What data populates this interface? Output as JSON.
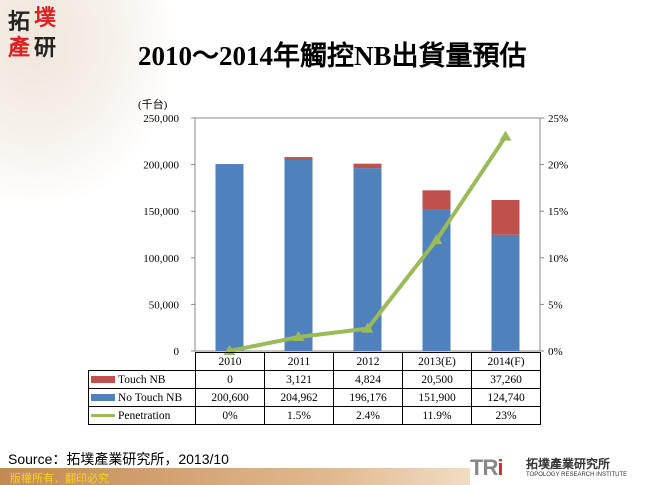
{
  "logo": {
    "text": "拓墣產研"
  },
  "title": "2010～2014年觸控NB出貨量預估",
  "unit_label": "(千台)",
  "source": "Source：拓墣產業研究所，2013/10",
  "footer": {
    "copyright": "版權所有．翻印必究",
    "brand": "TRi",
    "brand_cn": "拓墣產業研究所",
    "brand_en": "TOPOLOGY RESEARCH INSTITUTE"
  },
  "colors": {
    "touch": "#c0504d",
    "no_touch": "#4f81bd",
    "penetration": "#9bbb59"
  },
  "chart_data": {
    "type": "bar",
    "stacked": true,
    "categories": [
      "2010",
      "2011",
      "2012",
      "2013(E)",
      "2014(F)"
    ],
    "series": [
      {
        "name": "No Touch NB",
        "values": [
          200600,
          204962,
          196176,
          151900,
          124740
        ],
        "display": [
          "200,600",
          "204,962",
          "196,176",
          "151,900",
          "124,740"
        ]
      },
      {
        "name": "Touch NB",
        "values": [
          0,
          3121,
          4824,
          20500,
          37260
        ],
        "display": [
          "0",
          "3,121",
          "4,824",
          "20,500",
          "37,260"
        ]
      },
      {
        "name": "Penetration",
        "type": "line",
        "axis": "right",
        "values": [
          0,
          1.5,
          2.4,
          11.9,
          23
        ],
        "display": [
          "0%",
          "1.5%",
          "2.4%",
          "11.9%",
          "23%"
        ]
      }
    ],
    "y_left": {
      "range": [
        0,
        250000
      ],
      "ticks": [
        "0",
        "50,000",
        "100,000",
        "150,000",
        "200,000",
        "250,000"
      ]
    },
    "y_right": {
      "range": [
        0,
        25
      ],
      "ticks": [
        "0%",
        "5%",
        "10%",
        "15%",
        "20%",
        "25%"
      ]
    },
    "legend": "data-table"
  }
}
